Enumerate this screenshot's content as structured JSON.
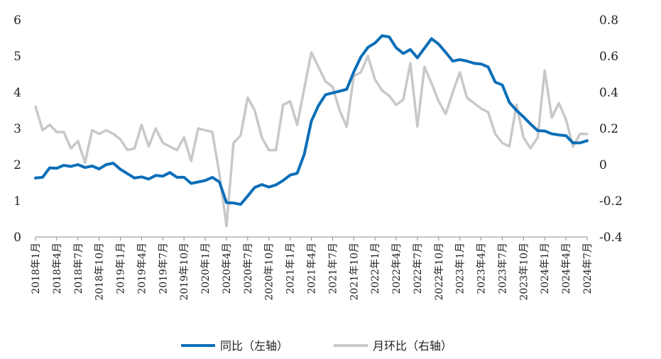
{
  "chart_data": {
    "type": "line",
    "title": "",
    "legend_position": "bottom",
    "grid": false,
    "x": [
      "2018年1月",
      "2018年2月",
      "2018年3月",
      "2018年4月",
      "2018年5月",
      "2018年6月",
      "2018年7月",
      "2018年8月",
      "2018年9月",
      "2018年10月",
      "2018年11月",
      "2018年12月",
      "2019年1月",
      "2019年2月",
      "2019年3月",
      "2019年4月",
      "2019年5月",
      "2019年6月",
      "2019年7月",
      "2019年8月",
      "2019年9月",
      "2019年10月",
      "2019年11月",
      "2019年12月",
      "2020年1月",
      "2020年2月",
      "2020年3月",
      "2020年4月",
      "2020年5月",
      "2020年6月",
      "2020年7月",
      "2020年8月",
      "2020年9月",
      "2020年10月",
      "2020年11月",
      "2020年12月",
      "2021年1月",
      "2021年2月",
      "2021年3月",
      "2021年4月",
      "2021年5月",
      "2021年6月",
      "2021年7月",
      "2021年8月",
      "2021年9月",
      "2021年10月",
      "2021年11月",
      "2021年12月",
      "2022年1月",
      "2022年2月",
      "2022年3月",
      "2022年4月",
      "2022年5月",
      "2022年6月",
      "2022年7月",
      "2022年8月",
      "2022年9月",
      "2022年10月",
      "2022年11月",
      "2022年12月",
      "2023年1月",
      "2023年2月",
      "2023年3月",
      "2023年4月",
      "2023年5月",
      "2023年6月",
      "2023年7月",
      "2023年8月",
      "2023年9月",
      "2023年10月",
      "2023年11月",
      "2023年12月",
      "2024年1月",
      "2024年2月",
      "2024年3月",
      "2024年4月",
      "2024年5月",
      "2024年6月",
      "2024年7月"
    ],
    "x_tick_labels": [
      "2018年1月",
      "2018年4月",
      "2018年7月",
      "2018年10月",
      "2019年1月",
      "2019年4月",
      "2019年7月",
      "2019年10月",
      "2020年1月",
      "2020年4月",
      "2020年7月",
      "2020年10月",
      "2021年1月",
      "2021年4月",
      "2021年7月",
      "2021年10月",
      "2022年1月",
      "2022年4月",
      "2022年7月",
      "2022年10月",
      "2023年1月",
      "2023年4月",
      "2023年7月",
      "2023年10月",
      "2024年1月",
      "2024年4月",
      "2024年7月"
    ],
    "y_left": {
      "range": [
        0,
        6
      ],
      "ticks": [
        "0",
        "1",
        "2",
        "3",
        "4",
        "5",
        "6"
      ]
    },
    "y_right": {
      "range": [
        -0.4,
        0.8
      ],
      "ticks": [
        "-0.4",
        "-0.2",
        "0",
        "0.2",
        "0.4",
        "0.6",
        "0.8"
      ]
    },
    "series": [
      {
        "name": "月环比（右轴）",
        "axis": "right",
        "color": "#c8c8c8",
        "values": [
          0.32,
          0.19,
          0.22,
          0.18,
          0.18,
          0.09,
          0.13,
          0.01,
          0.19,
          0.17,
          0.19,
          0.17,
          0.14,
          0.08,
          0.09,
          0.22,
          0.1,
          0.2,
          0.12,
          0.1,
          0.08,
          0.15,
          0.02,
          0.2,
          0.19,
          0.18,
          -0.05,
          -0.34,
          0.12,
          0.16,
          0.37,
          0.3,
          0.15,
          0.08,
          0.08,
          0.33,
          0.35,
          0.22,
          0.42,
          0.62,
          0.54,
          0.46,
          0.43,
          0.3,
          0.21,
          0.49,
          0.51,
          0.6,
          0.47,
          0.41,
          0.38,
          0.33,
          0.36,
          0.56,
          0.21,
          0.54,
          0.45,
          0.35,
          0.28,
          0.4,
          0.51,
          0.37,
          0.34,
          0.31,
          0.29,
          0.17,
          0.12,
          0.1,
          0.33,
          0.15,
          0.09,
          0.15,
          0.52,
          0.26,
          0.34,
          0.25,
          0.1,
          0.17,
          0.17
        ]
      },
      {
        "name": "同比（左轴）",
        "axis": "left",
        "color": "#0b6eb8",
        "values": [
          1.63,
          1.65,
          1.91,
          1.9,
          1.98,
          1.95,
          2.0,
          1.92,
          1.96,
          1.88,
          2.0,
          2.04,
          1.87,
          1.75,
          1.63,
          1.66,
          1.6,
          1.7,
          1.68,
          1.78,
          1.65,
          1.65,
          1.48,
          1.52,
          1.56,
          1.65,
          1.52,
          0.95,
          0.94,
          0.9,
          1.13,
          1.37,
          1.45,
          1.38,
          1.44,
          1.56,
          1.71,
          1.76,
          2.28,
          3.2,
          3.63,
          3.93,
          3.98,
          4.03,
          4.08,
          4.56,
          4.97,
          5.24,
          5.36,
          5.56,
          5.53,
          5.23,
          5.07,
          5.18,
          4.95,
          5.22,
          5.48,
          5.33,
          5.1,
          4.86,
          4.9,
          4.86,
          4.8,
          4.78,
          4.7,
          4.28,
          4.2,
          3.72,
          3.5,
          3.32,
          3.12,
          2.94,
          2.93,
          2.85,
          2.82,
          2.8,
          2.6,
          2.6,
          2.66
        ]
      }
    ]
  }
}
